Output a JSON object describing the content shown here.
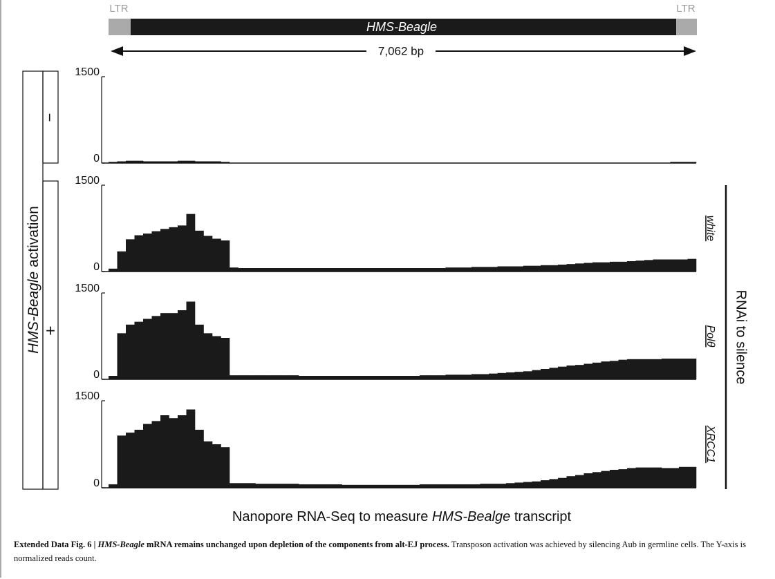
{
  "header": {
    "ltr_left": "LTR",
    "ltr_right": "LTR",
    "element": "HMS-Beagle",
    "length": "7,062 bp"
  },
  "condition": {
    "label_italic": "HMS-Beagle",
    "label": " activation",
    "minus": "−",
    "plus": "+"
  },
  "rnai_label": "RNAi to silence",
  "xlabel": [
    "Nanopore RNA-Seq to measure ",
    "HMS-Bealge",
    " transcript"
  ],
  "caption": {
    "label": "Extended Data Fig. 6 | ",
    "title_italic": "HMS-Beagle",
    "title": " mRNA remains unchanged upon depletion of the components from alt-EJ process.",
    "text": " Transposon activation was achieved by silencing Aub in germline cells. The Y-axis is normalized reads count."
  },
  "chart_data": [
    {
      "type": "bar",
      "color": "#1a1a1a",
      "ylim": [
        0,
        1500
      ],
      "yticks": [
        0,
        1500
      ],
      "values": [
        20,
        30,
        40,
        40,
        30,
        30,
        30,
        30,
        40,
        40,
        30,
        30,
        30,
        20,
        5,
        5,
        5,
        5,
        5,
        5,
        5,
        5,
        5,
        5,
        5,
        5,
        5,
        5,
        5,
        5,
        5,
        5,
        5,
        5,
        5,
        5,
        5,
        5,
        5,
        5,
        5,
        5,
        5,
        5,
        5,
        5,
        5,
        5,
        5,
        5,
        5,
        5,
        5,
        5,
        5,
        5,
        5,
        5,
        5,
        5,
        5,
        5,
        5,
        5,
        5,
        20,
        20,
        20
      ]
    },
    {
      "type": "bar",
      "name": "white",
      "color": "#1a1a1a",
      "ylim": [
        0,
        1500
      ],
      "yticks": [
        0,
        1500
      ],
      "values": [
        50,
        350,
        560,
        630,
        660,
        700,
        740,
        770,
        800,
        1000,
        710,
        620,
        570,
        540,
        70,
        60,
        60,
        60,
        60,
        60,
        60,
        60,
        60,
        60,
        60,
        60,
        60,
        60,
        60,
        60,
        60,
        60,
        60,
        60,
        60,
        60,
        60,
        60,
        60,
        70,
        70,
        70,
        80,
        80,
        80,
        90,
        90,
        90,
        100,
        100,
        110,
        110,
        120,
        130,
        140,
        150,
        160,
        160,
        170,
        170,
        180,
        190,
        200,
        210,
        210,
        210,
        210,
        220
      ]
    },
    {
      "type": "bar",
      "name": "Polθ",
      "color": "#1a1a1a",
      "ylim": [
        0,
        1500
      ],
      "yticks": [
        0,
        1500
      ],
      "values": [
        60,
        800,
        950,
        1000,
        1050,
        1100,
        1150,
        1150,
        1200,
        1350,
        950,
        800,
        750,
        720,
        70,
        70,
        70,
        70,
        70,
        70,
        70,
        70,
        60,
        60,
        60,
        60,
        60,
        60,
        60,
        60,
        60,
        60,
        60,
        60,
        60,
        60,
        70,
        70,
        70,
        80,
        80,
        80,
        90,
        90,
        100,
        110,
        120,
        130,
        140,
        160,
        180,
        200,
        220,
        240,
        250,
        270,
        290,
        310,
        320,
        340,
        350,
        350,
        350,
        350,
        360,
        360,
        360,
        360
      ]
    },
    {
      "type": "bar",
      "name": "XRCC1",
      "color": "#1a1a1a",
      "ylim": [
        0,
        1500
      ],
      "yticks": [
        0,
        1500
      ],
      "values": [
        60,
        900,
        950,
        1000,
        1100,
        1150,
        1250,
        1200,
        1250,
        1350,
        1000,
        800,
        750,
        700,
        80,
        80,
        80,
        70,
        70,
        70,
        70,
        70,
        60,
        60,
        60,
        60,
        60,
        50,
        50,
        50,
        50,
        50,
        50,
        50,
        50,
        50,
        60,
        60,
        60,
        60,
        60,
        60,
        60,
        70,
        70,
        70,
        80,
        90,
        100,
        110,
        130,
        150,
        170,
        200,
        220,
        250,
        270,
        290,
        310,
        320,
        340,
        350,
        350,
        350,
        340,
        340,
        360,
        360
      ]
    }
  ]
}
